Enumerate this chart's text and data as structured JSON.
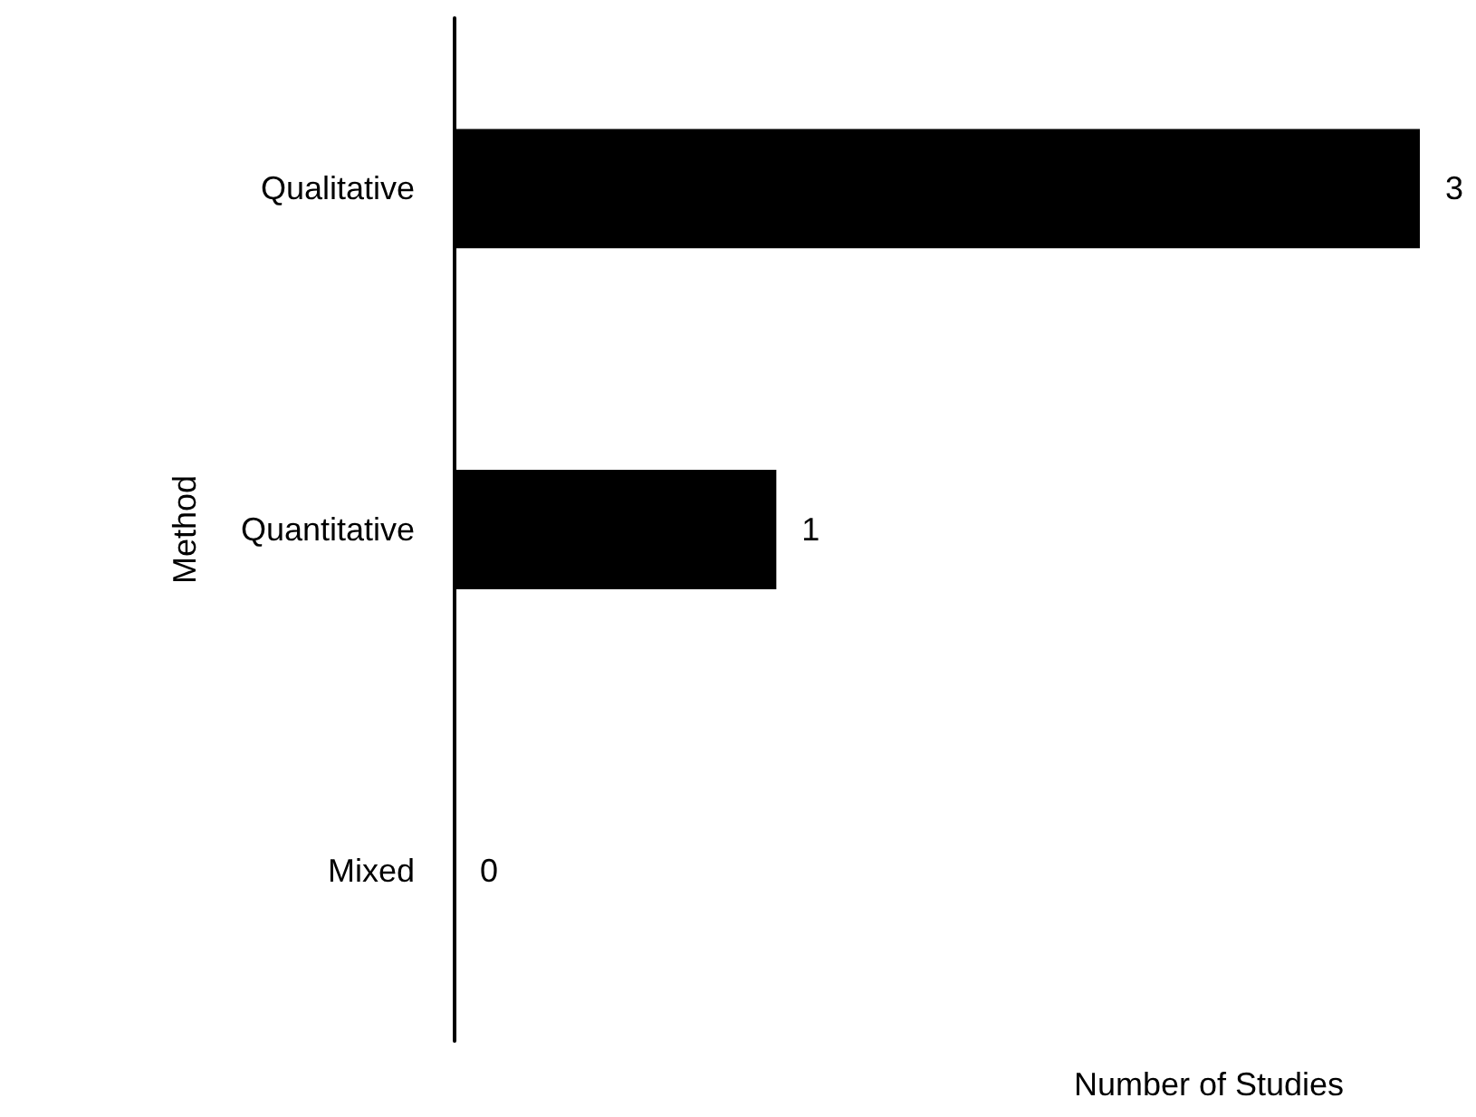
{
  "chart_data": {
    "type": "bar",
    "orientation": "horizontal",
    "categories": [
      "Qualitative",
      "Quantitative",
      "Mixed"
    ],
    "values": [
      3,
      1,
      0
    ],
    "color": "#000000",
    "data_labels": true,
    "xlabel": "Number of Studies",
    "ylabel": "Method",
    "tick_labels": "y",
    "grid": false
  }
}
